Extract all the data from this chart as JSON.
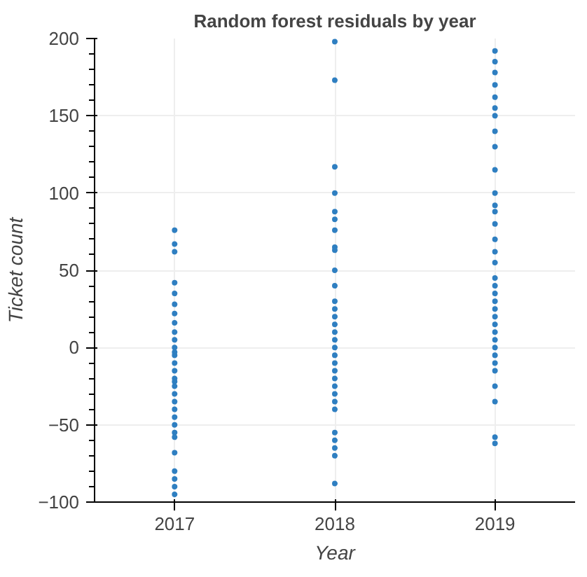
{
  "chart_data": {
    "type": "scatter",
    "title": "Random forest residuals by year",
    "xlabel": "Year",
    "ylabel": "Ticket count",
    "series": [
      {
        "color": "#2f7fc1",
        "x": [
          2017,
          2017,
          2017,
          2017,
          2017,
          2017,
          2017,
          2017,
          2017,
          2017,
          2017,
          2017,
          2017,
          2017,
          2017,
          2017,
          2017,
          2017,
          2017,
          2017,
          2017,
          2017,
          2017,
          2017,
          2017,
          2017,
          2017,
          2017,
          2017,
          2017,
          2018,
          2018,
          2018,
          2018,
          2018,
          2018,
          2018,
          2018,
          2018,
          2018,
          2018,
          2018,
          2018,
          2018,
          2018,
          2018,
          2018,
          2018,
          2018,
          2018,
          2018,
          2018,
          2018,
          2018,
          2018,
          2018,
          2018,
          2018,
          2018,
          2018,
          2018,
          2019,
          2019,
          2019,
          2019,
          2019,
          2019,
          2019,
          2019,
          2019,
          2019,
          2019,
          2019,
          2019,
          2019,
          2019,
          2019,
          2019,
          2019,
          2019,
          2019,
          2019,
          2019,
          2019,
          2019,
          2019,
          2019,
          2019,
          2019,
          2019,
          2019,
          2019,
          2019,
          2019,
          2019
        ],
        "values": [
          76,
          67,
          62,
          42,
          35,
          28,
          22,
          16,
          10,
          5,
          0,
          -5,
          -10,
          -15,
          -20,
          -25,
          -30,
          -35,
          -40,
          -45,
          -50,
          -55,
          -58,
          -68,
          -80,
          -85,
          -90,
          -95,
          -3,
          -22,
          198,
          173,
          117,
          100,
          88,
          83,
          76,
          65,
          63,
          50,
          40,
          30,
          25,
          20,
          15,
          10,
          5,
          0,
          -5,
          -10,
          -15,
          -20,
          -25,
          -30,
          -35,
          -40,
          -55,
          -60,
          -65,
          -70,
          -88,
          192,
          185,
          178,
          170,
          162,
          155,
          150,
          140,
          130,
          115,
          100,
          92,
          88,
          80,
          70,
          62,
          55,
          45,
          40,
          35,
          30,
          25,
          20,
          15,
          10,
          5,
          0,
          -5,
          -10,
          -15,
          -25,
          -35,
          -58,
          -62
        ]
      }
    ],
    "xlim": [
      2016.5,
      2019.5
    ],
    "xticks": [
      2017,
      2018,
      2019
    ],
    "ylim": [
      -100,
      200
    ],
    "yticks": [
      -100,
      -50,
      0,
      50,
      100,
      150,
      200
    ],
    "grid": true,
    "marker": "circle"
  }
}
